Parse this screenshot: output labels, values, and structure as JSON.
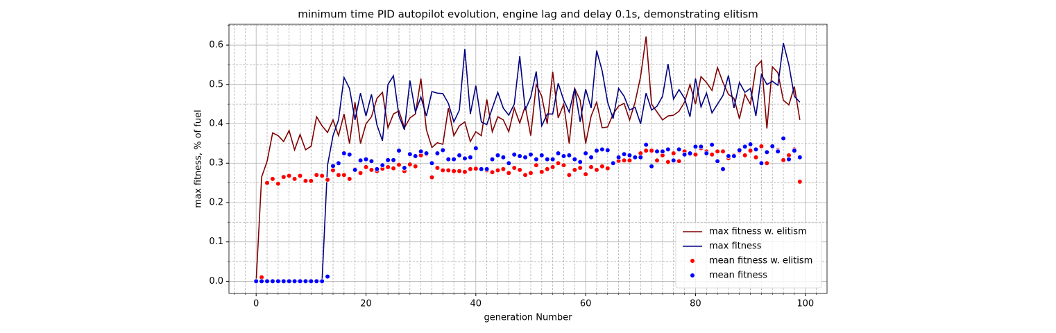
{
  "chart_data": {
    "type": "line",
    "title": "minimum time PID autopilot evolution, engine lag and delay 0.1s, demonstrating elitism",
    "x_label": "generation Number",
    "y_label": "max fitness, % of fuel",
    "x": [
      0,
      1,
      2,
      3,
      4,
      5,
      6,
      7,
      8,
      9,
      10,
      11,
      12,
      13,
      14,
      15,
      16,
      17,
      18,
      19,
      20,
      21,
      22,
      23,
      24,
      25,
      26,
      27,
      28,
      29,
      30,
      31,
      32,
      33,
      34,
      35,
      36,
      37,
      38,
      39,
      40,
      41,
      42,
      43,
      44,
      45,
      46,
      47,
      48,
      49,
      50,
      51,
      52,
      53,
      54,
      55,
      56,
      57,
      58,
      59,
      60,
      61,
      62,
      63,
      64,
      65,
      66,
      67,
      68,
      69,
      70,
      71,
      72,
      73,
      74,
      75,
      76,
      77,
      78,
      79,
      80,
      81,
      82,
      83,
      84,
      85,
      86,
      87,
      88,
      89,
      90,
      91,
      92,
      93,
      94,
      95,
      96,
      97,
      98,
      99
    ],
    "series": [
      {
        "name": "max fitness w. elitism",
        "type": "line",
        "color": "#800000",
        "values": [
          0,
          0.265,
          0.305,
          0.377,
          0.37,
          0.355,
          0.383,
          0.334,
          0.373,
          0.334,
          0.343,
          0.418,
          0.395,
          0.378,
          0.41,
          0.37,
          0.425,
          0.35,
          0.455,
          0.35,
          0.4,
          0.418,
          0.465,
          0.48,
          0.39,
          0.425,
          0.433,
          0.39,
          0.415,
          0.425,
          0.515,
          0.385,
          0.34,
          0.352,
          0.348,
          0.44,
          0.37,
          0.395,
          0.405,
          0.355,
          0.38,
          0.37,
          0.462,
          0.38,
          0.418,
          0.41,
          0.38,
          0.44,
          0.402,
          0.445,
          0.37,
          0.5,
          0.47,
          0.4,
          0.532,
          0.415,
          0.45,
          0.35,
          0.49,
          0.46,
          0.35,
          0.42,
          0.455,
          0.39,
          0.392,
          0.425,
          0.445,
          0.452,
          0.41,
          0.455,
          0.52,
          0.622,
          0.45,
          0.43,
          0.41,
          0.42,
          0.422,
          0.432,
          0.455,
          0.5,
          0.45,
          0.52,
          0.505,
          0.485,
          0.543,
          0.505,
          0.475,
          0.465,
          0.413,
          0.475,
          0.45,
          0.545,
          0.56,
          0.388,
          0.545,
          0.53,
          0.46,
          0.448,
          0.495,
          0.41
        ]
      },
      {
        "name": "max fitness",
        "type": "line",
        "color": "#000080",
        "values": [
          0,
          0,
          0,
          0,
          0,
          0,
          0,
          0,
          0,
          0,
          0,
          0,
          0,
          0.295,
          0.37,
          0.41,
          0.518,
          0.49,
          0.41,
          0.478,
          0.42,
          0.475,
          0.397,
          0.357,
          0.5,
          0.522,
          0.42,
          0.385,
          0.51,
          0.43,
          0.468,
          0.42,
          0.482,
          0.478,
          0.477,
          0.452,
          0.405,
          0.435,
          0.59,
          0.425,
          0.497,
          0.405,
          0.398,
          0.44,
          0.48,
          0.44,
          0.422,
          0.45,
          0.572,
          0.435,
          0.468,
          0.533,
          0.395,
          0.425,
          0.425,
          0.503,
          0.46,
          0.43,
          0.49,
          0.405,
          0.488,
          0.44,
          0.586,
          0.535,
          0.455,
          0.413,
          0.49,
          0.47,
          0.435,
          0.442,
          0.4,
          0.478,
          0.435,
          0.445,
          0.47,
          0.552,
          0.463,
          0.487,
          0.465,
          0.418,
          0.515,
          0.443,
          0.478,
          0.428,
          0.45,
          0.472,
          0.523,
          0.44,
          0.505,
          0.48,
          0.49,
          0.42,
          0.525,
          0.5,
          0.508,
          0.498,
          0.605,
          0.55,
          0.47,
          0.455
        ]
      },
      {
        "name": "mean fitness w. elitism",
        "type": "scatter",
        "color": "#ff0000",
        "values": [
          0,
          0.01,
          0.25,
          0.26,
          0.248,
          0.265,
          0.268,
          0.26,
          0.268,
          0.255,
          0.255,
          0.27,
          0.268,
          0.258,
          0.282,
          0.27,
          0.27,
          0.26,
          0.285,
          0.275,
          0.29,
          0.283,
          0.28,
          0.286,
          0.29,
          0.287,
          0.296,
          0.28,
          0.297,
          0.292,
          0.32,
          0.323,
          0.264,
          0.288,
          0.282,
          0.282,
          0.28,
          0.28,
          0.278,
          0.285,
          0.286,
          0.285,
          0.282,
          0.277,
          0.282,
          0.285,
          0.275,
          0.288,
          0.283,
          0.27,
          0.275,
          0.295,
          0.278,
          0.285,
          0.29,
          0.3,
          0.295,
          0.27,
          0.283,
          0.288,
          0.272,
          0.29,
          0.283,
          0.292,
          0.287,
          0.3,
          0.306,
          0.307,
          0.307,
          0.315,
          0.325,
          0.332,
          0.332,
          0.307,
          0.32,
          0.303,
          0.325,
          0.305,
          0.33,
          0.323,
          0.322,
          0.338,
          0.33,
          0.322,
          0.33,
          0.33,
          0.313,
          0.32,
          0.33,
          0.32,
          0.332,
          0.315,
          0.343,
          0.3,
          0.345,
          0.333,
          0.308,
          0.32,
          0.335,
          0.253
        ]
      },
      {
        "name": "mean fitness",
        "type": "scatter",
        "color": "#0000ff",
        "values": [
          0,
          0,
          0,
          0,
          0,
          0,
          0,
          0,
          0,
          0,
          0,
          0,
          0,
          0.012,
          0.293,
          0.3,
          0.325,
          0.322,
          0.283,
          0.307,
          0.31,
          0.305,
          0.285,
          0.295,
          0.308,
          0.308,
          0.332,
          0.288,
          0.323,
          0.318,
          0.33,
          0.325,
          0.3,
          0.325,
          0.333,
          0.31,
          0.31,
          0.32,
          0.312,
          0.315,
          0.338,
          0.285,
          0.285,
          0.31,
          0.32,
          0.315,
          0.3,
          0.322,
          0.318,
          0.315,
          0.322,
          0.31,
          0.32,
          0.31,
          0.31,
          0.325,
          0.318,
          0.32,
          0.31,
          0.303,
          0.325,
          0.315,
          0.332,
          0.335,
          0.333,
          0.3,
          0.315,
          0.323,
          0.32,
          0.315,
          0.315,
          0.347,
          0.292,
          0.33,
          0.33,
          0.335,
          0.307,
          0.335,
          0.322,
          0.325,
          0.342,
          0.342,
          0.325,
          0.347,
          0.305,
          0.285,
          0.318,
          0.318,
          0.333,
          0.342,
          0.348,
          0.335,
          0.3,
          0.328,
          0.343,
          0.33,
          0.363,
          0.31,
          0.332,
          0.315
        ]
      }
    ],
    "xlim": [
      -4.95,
      103.95
    ],
    "ylim": [
      -0.031,
      0.653
    ],
    "xticks": [
      0,
      20,
      40,
      60,
      80,
      100
    ],
    "yticks": [
      {
        "value": 0,
        "label": "0.0"
      },
      0.1,
      0.2,
      0.3,
      0.4,
      0.5,
      0.6
    ],
    "xminorticks": [
      -4,
      -2,
      2,
      4,
      6,
      8,
      10,
      12,
      14,
      16,
      18,
      22,
      24,
      26,
      28,
      30,
      32,
      34,
      36,
      38,
      42,
      44,
      46,
      48,
      50,
      52,
      54,
      56,
      58,
      62,
      64,
      66,
      68,
      70,
      72,
      74,
      76,
      78,
      82,
      84,
      86,
      88,
      90,
      92,
      94,
      96,
      98,
      102
    ],
    "yminorticks": [
      0.05,
      0.15,
      0.25,
      0.35,
      0.45,
      0.55,
      0.65
    ],
    "grid": true,
    "legend": "lower right"
  }
}
